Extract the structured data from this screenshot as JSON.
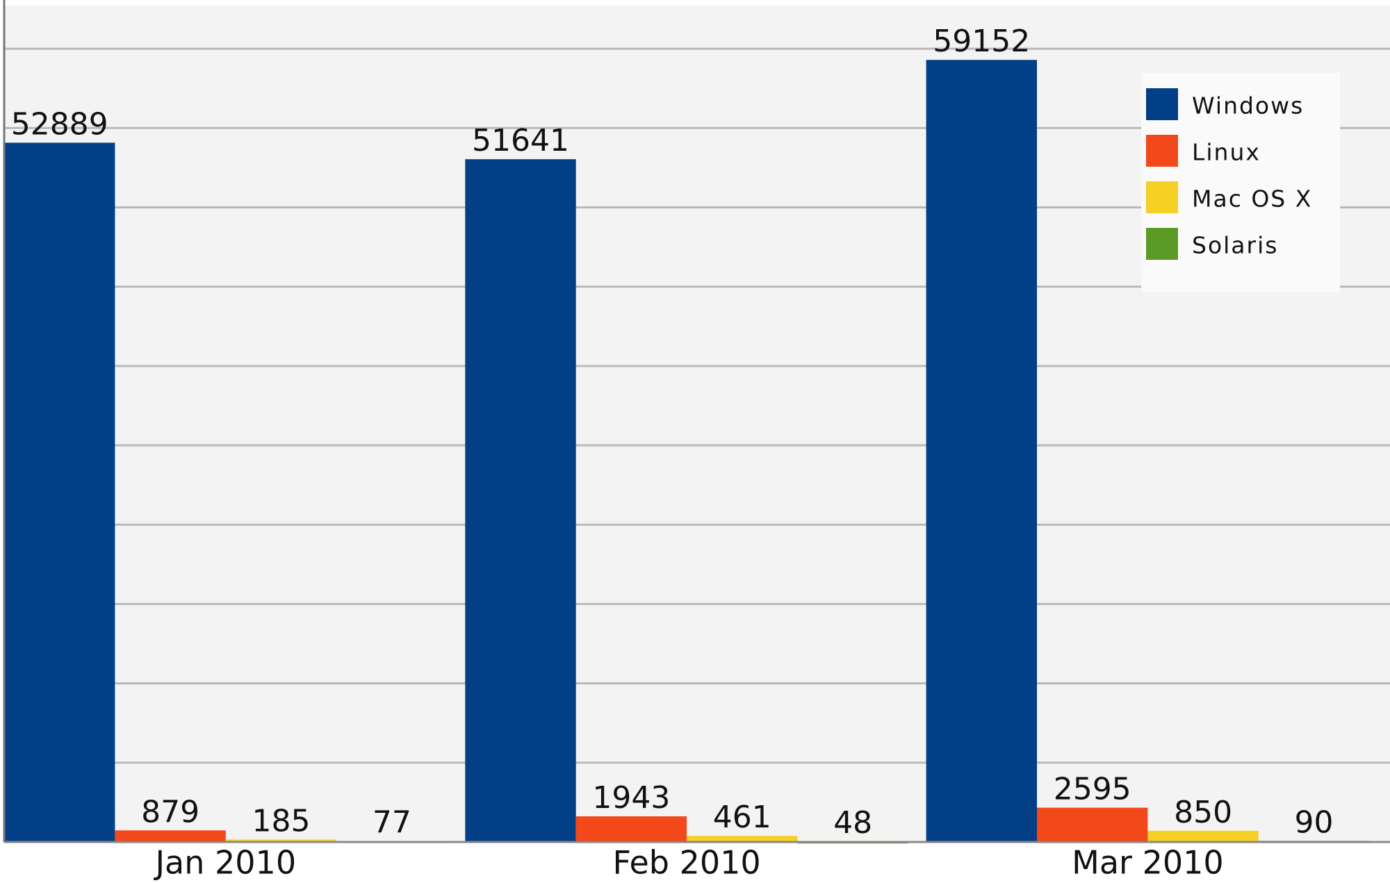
{
  "chart_data": {
    "type": "bar",
    "categories": [
      "Jan 2010",
      "Feb 2010",
      "Mar 2010"
    ],
    "series": [
      {
        "name": "Windows",
        "color": "#033f86",
        "values": [
          52889,
          51641,
          59152
        ]
      },
      {
        "name": "Linux",
        "color": "#f2481a",
        "values": [
          879,
          1943,
          2595
        ]
      },
      {
        "name": "Mac OS X",
        "color": "#f6d024",
        "values": [
          185,
          461,
          850
        ]
      },
      {
        "name": "Solaris",
        "color": "#5b9a24",
        "values": [
          77,
          48,
          90
        ]
      }
    ],
    "ylim": [
      0,
      63000
    ],
    "yticks": [
      6000,
      12000,
      18000,
      24000,
      30000,
      36000,
      42000,
      48000,
      54000,
      60000
    ],
    "grid": true,
    "legend": "top-right"
  }
}
